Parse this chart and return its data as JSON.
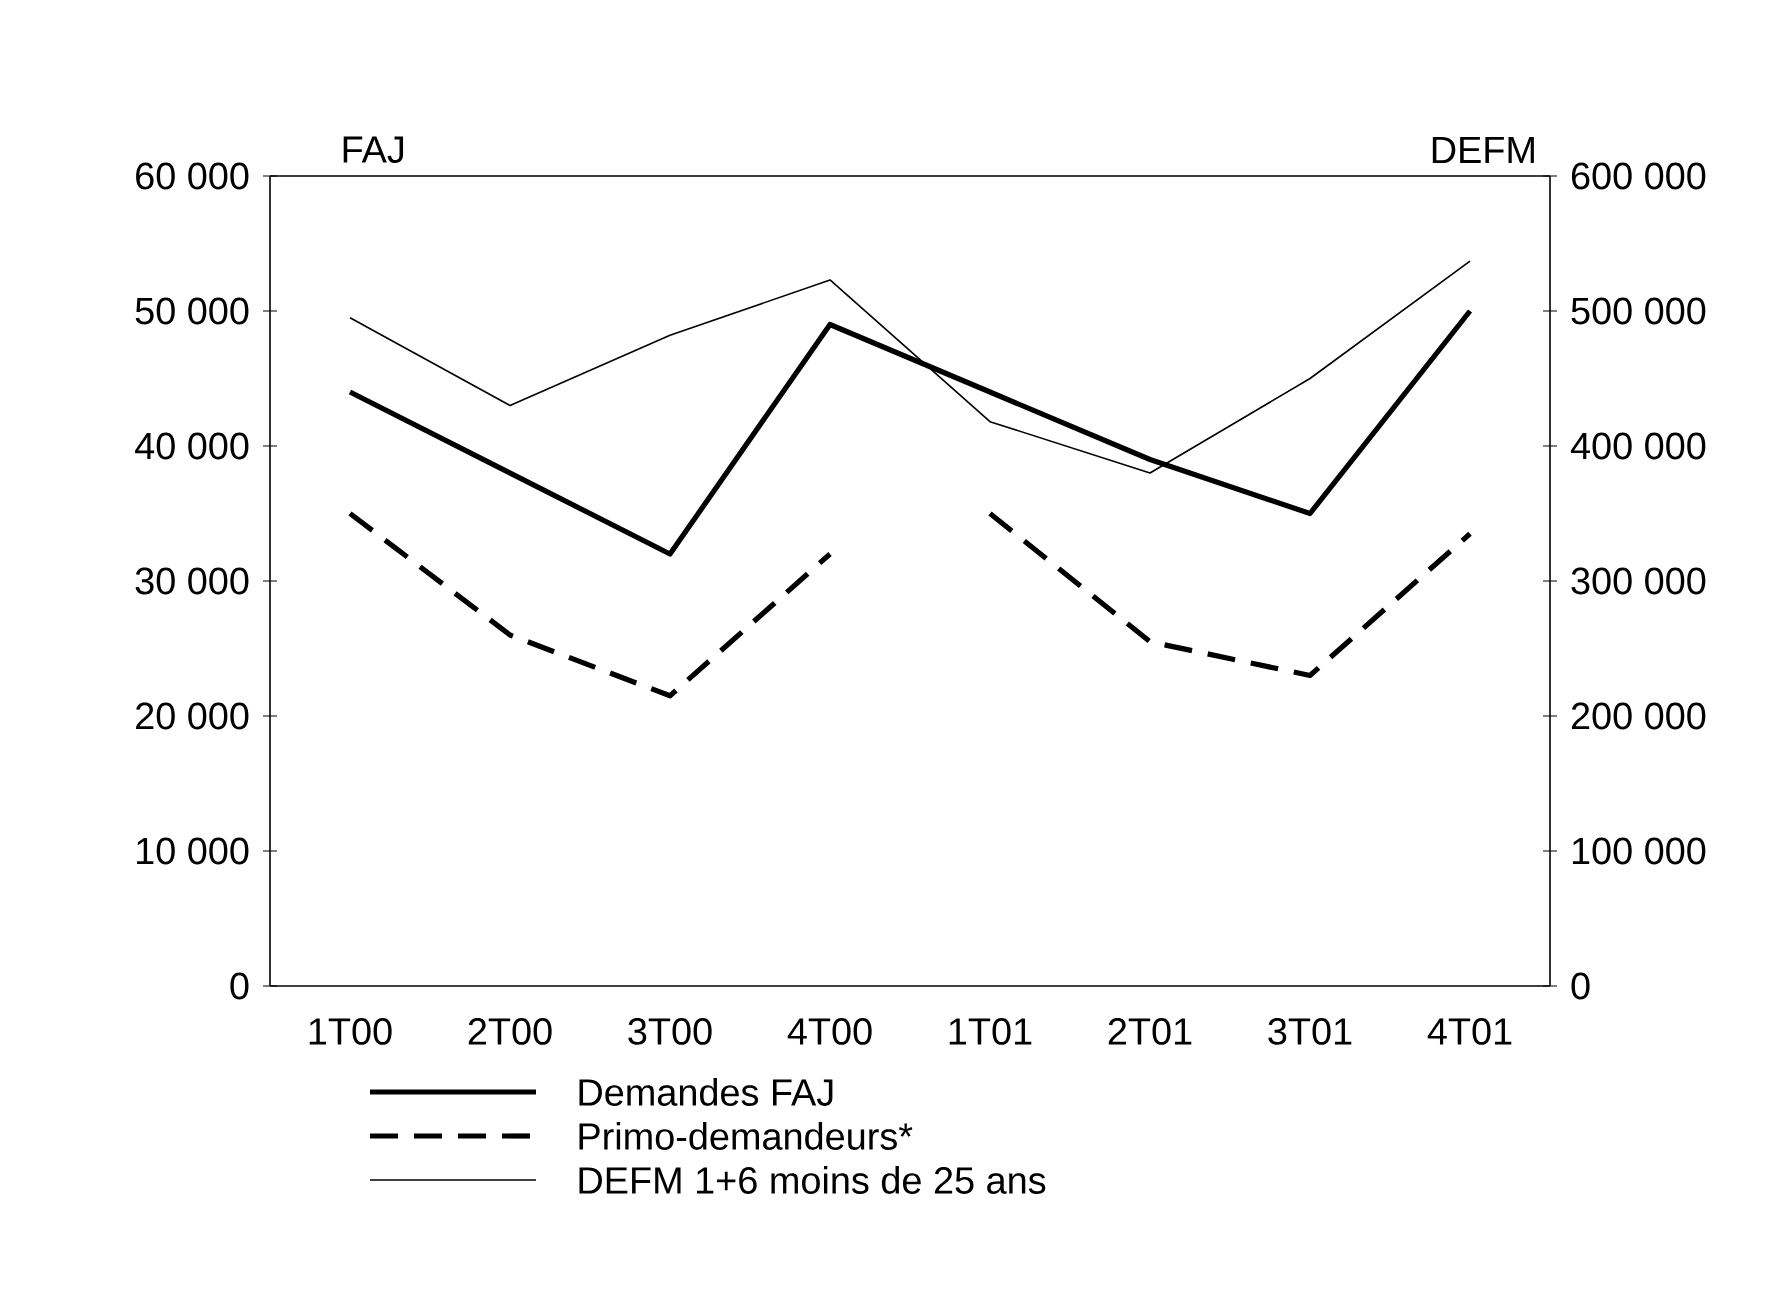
{
  "chart_data": {
    "type": "line",
    "ylabel": "FAJ",
    "y2label": "DEFM",
    "categories": [
      "1T00",
      "2T00",
      "3T00",
      "4T00",
      "1T01",
      "2T01",
      "3T01",
      "4T01"
    ],
    "series": [
      {
        "name": "Demandes FAJ",
        "color": "#000000",
        "line_style": "solid",
        "values": [
          44000,
          38000,
          32000,
          49000,
          44000,
          39000,
          35000,
          50000
        ]
      },
      {
        "name": "Primo-demandeurs*",
        "color": "#000000",
        "line_style": "dashed",
        "values": [
          35000,
          26000,
          21500,
          32000,
          null,
          null,
          null,
          null
        ]
      },
      {
        "color": "#000000",
        "line_style": "dashed",
        "values": [
          null,
          null,
          null,
          null,
          35000,
          25500,
          23000,
          33500
        ]
      },
      {
        "name": "DEFM 1+6 moins de 25 ans",
        "color": "#000000",
        "line_style": "solid",
        "axis": "y2",
        "values": [
          495000,
          430000,
          482000,
          523000,
          418000,
          380000,
          450000,
          537000
        ]
      }
    ],
    "ylim": [
      0,
      60000
    ],
    "yticks": [
      {
        "value": 0,
        "label": "0"
      },
      {
        "value": 10000,
        "label": "10 000"
      },
      {
        "value": 20000,
        "label": "20 000"
      },
      {
        "value": 30000,
        "label": "30 000"
      },
      {
        "value": 40000,
        "label": "40 000"
      },
      {
        "value": 50000,
        "label": "50 000"
      },
      {
        "value": 60000,
        "label": "60 000"
      }
    ],
    "y2lim": [
      0,
      600000
    ],
    "y2ticks": [
      {
        "value": 0,
        "label": "0"
      },
      {
        "value": 100000,
        "label": "100 000"
      },
      {
        "value": 200000,
        "label": "200 000"
      },
      {
        "value": 300000,
        "label": "300 000"
      },
      {
        "value": 400000,
        "label": "400 000"
      },
      {
        "value": 500000,
        "label": "500 000"
      },
      {
        "value": 600000,
        "label": "600 000"
      }
    ],
    "grid": false,
    "legend": "bottom",
    "marker": "none"
  }
}
